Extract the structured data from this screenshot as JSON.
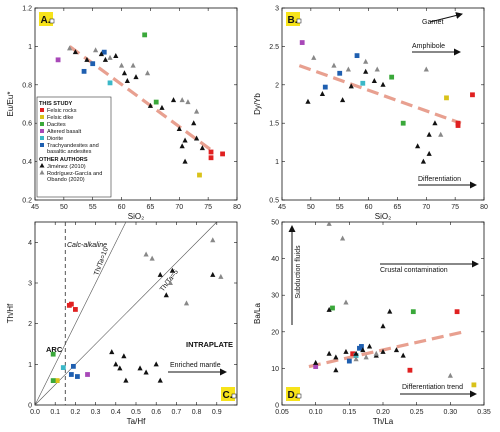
{
  "figure_colors": {
    "felsic_rocks": "#e02020",
    "felsic_dike": "#d9c21a",
    "dacites": "#3aa83a",
    "altered_basalt": "#a848b8",
    "diorite": "#3ab8c8",
    "trachyandesites": "#1f5fb0",
    "trend": "#e8a090",
    "badge_fill": "#f7e31a"
  },
  "legend": {
    "this_study": "THIS STUDY",
    "felsic_rocks": "Felsic rocks",
    "felsic_dike": "Felsic dike",
    "dacites": "Dacites",
    "altered_basalt": "Altered basalt",
    "diorite": "Diorite",
    "trachyandesites_1": "Trachyandesites and",
    "trachyandesites_2": "basaltic andesites",
    "other_authors": "OTHER AUTHORS",
    "jimenez": "Jiménez (2010)",
    "rodriguez_1": "Rodríguez-García and",
    "rodriguez_2": "Obando (2020)"
  },
  "chart_data": [
    {
      "id": "A",
      "badge": "A.",
      "type": "scatter",
      "xlabel": "SiO₂",
      "ylabel": "Eu/Eu*",
      "xlim": [
        45,
        80
      ],
      "ylim": [
        0.2,
        1.2
      ],
      "xticks": [
        45,
        50,
        55,
        60,
        65,
        70,
        75,
        80
      ],
      "yticks": [
        0.2,
        0.4,
        0.6,
        0.8,
        1.0,
        1.2
      ],
      "tick_labels_x": [
        "45",
        "50",
        "55",
        "60",
        "65",
        "70",
        "75",
        "80"
      ],
      "tick_labels_y": [
        "0.2",
        "0.4",
        "0.6",
        "0.8",
        "1",
        "1.2"
      ],
      "trend": [
        [
          51,
          1.0
        ],
        [
          76,
          0.45
        ]
      ],
      "series": [
        {
          "group": "felsic_rocks",
          "points": [
            [
              75.5,
              0.45
            ],
            [
              75.5,
              0.42
            ],
            [
              77.5,
              0.44
            ]
          ]
        },
        {
          "group": "felsic_dike",
          "points": [
            [
              73.5,
              0.33
            ]
          ]
        },
        {
          "group": "dacites",
          "points": [
            [
              64,
              1.06
            ],
            [
              66,
              0.71
            ]
          ]
        },
        {
          "group": "altered_basalt",
          "points": [
            [
              49,
              0.93
            ]
          ]
        },
        {
          "group": "diorite",
          "points": [
            [
              58,
              0.81
            ]
          ]
        },
        {
          "group": "trachyandesites",
          "points": [
            [
              53.5,
              0.87
            ],
            [
              55,
              0.91
            ],
            [
              57,
              0.97
            ]
          ]
        },
        {
          "group": "jimenez",
          "points": [
            [
              52,
              0.97
            ],
            [
              54,
              0.93
            ],
            [
              56.5,
              0.96
            ],
            [
              57.2,
              0.93
            ],
            [
              59,
              0.95
            ],
            [
              60.5,
              0.86
            ],
            [
              61,
              0.82
            ],
            [
              62.5,
              0.84
            ],
            [
              65,
              0.69
            ],
            [
              67,
              0.68
            ],
            [
              69,
              0.72
            ],
            [
              70,
              0.57
            ],
            [
              70.5,
              0.48
            ],
            [
              71,
              0.51
            ],
            [
              72.5,
              0.6
            ],
            [
              73,
              0.52
            ],
            [
              74,
              0.47
            ],
            [
              71,
              0.4
            ]
          ]
        },
        {
          "group": "rodriguez",
          "points": [
            [
              51,
              0.99
            ],
            [
              55.5,
              0.98
            ],
            [
              58,
              0.94
            ],
            [
              60,
              0.9
            ],
            [
              62,
              0.9
            ],
            [
              64.5,
              0.86
            ],
            [
              70.5,
              0.72
            ],
            [
              71.5,
              0.71
            ],
            [
              73,
              0.66
            ]
          ]
        }
      ]
    },
    {
      "id": "B",
      "badge": "B.",
      "type": "scatter",
      "xlabel": "SiO₂",
      "ylabel": "Dy/Yb",
      "xlim": [
        45,
        80
      ],
      "ylim": [
        0.5,
        3.0
      ],
      "xticks": [
        45,
        50,
        55,
        60,
        65,
        70,
        75,
        80
      ],
      "yticks": [
        0.5,
        1.0,
        1.5,
        2.0,
        2.5,
        3.0
      ],
      "tick_labels_x": [
        "45",
        "50",
        "55",
        "60",
        "65",
        "70",
        "75",
        "80"
      ],
      "tick_labels_y": [
        "0.5",
        "1",
        "1.5",
        "2",
        "2.5",
        "3"
      ],
      "trend": [
        [
          48,
          2.25
        ],
        [
          76,
          1.5
        ]
      ],
      "annotations": [
        "Garnet",
        "Amphibole",
        "Differentiation"
      ],
      "series": [
        {
          "group": "felsic_rocks",
          "points": [
            [
              75.5,
              1.47
            ],
            [
              75.5,
              1.5
            ],
            [
              78,
              1.87
            ]
          ]
        },
        {
          "group": "felsic_dike",
          "points": [
            [
              73.5,
              1.83
            ]
          ]
        },
        {
          "group": "dacites",
          "points": [
            [
              64,
              2.1
            ],
            [
              66,
              1.5
            ]
          ]
        },
        {
          "group": "altered_basalt",
          "points": [
            [
              48.5,
              2.55
            ]
          ]
        },
        {
          "group": "diorite",
          "points": [
            [
              59,
              2.02
            ]
          ]
        },
        {
          "group": "trachyandesites",
          "points": [
            [
              52.5,
              1.97
            ],
            [
              55,
              2.15
            ],
            [
              58,
              2.38
            ]
          ]
        },
        {
          "group": "jimenez",
          "points": [
            [
              49.5,
              1.78
            ],
            [
              52,
              1.88
            ],
            [
              55.5,
              1.8
            ],
            [
              57,
              1.98
            ],
            [
              59.5,
              2.17
            ],
            [
              61,
              2.05
            ],
            [
              62.5,
              2.0
            ],
            [
              68.5,
              1.2
            ],
            [
              69.5,
              1.0
            ],
            [
              70.5,
              1.35
            ],
            [
              71.5,
              1.5
            ],
            [
              70.5,
              1.1
            ]
          ]
        },
        {
          "group": "rodriguez",
          "points": [
            [
              50.5,
              2.35
            ],
            [
              54,
              2.25
            ],
            [
              56.5,
              2.2
            ],
            [
              59.5,
              2.3
            ],
            [
              61.5,
              2.2
            ],
            [
              70,
              2.2
            ],
            [
              72.5,
              1.35
            ]
          ]
        }
      ]
    },
    {
      "id": "C",
      "badge": "C.",
      "type": "scatter",
      "xlabel": "Ta/Hf",
      "ylabel": "Th/Hf",
      "xlim": [
        0,
        1.0
      ],
      "ylim": [
        0,
        4.5
      ],
      "xticks": [
        0,
        0.1,
        0.2,
        0.3,
        0.4,
        0.5,
        0.6,
        0.7,
        0.8,
        0.9
      ],
      "yticks": [
        0,
        1,
        2,
        3,
        4
      ],
      "tick_labels_x": [
        "0.0",
        "0.1",
        "0.2",
        "0.3",
        "0.4",
        "0.5",
        "0.6",
        "0.7",
        "0.8",
        "0.9"
      ],
      "tick_labels_y": [
        "0",
        "1",
        "2",
        "3",
        "4"
      ],
      "annotations": [
        "Calc-alkaline",
        "Th/Ta=10",
        "Th/Ta=5",
        "ARC",
        "INTRAPLATE",
        "Enriched mantle"
      ],
      "series": [
        {
          "group": "felsic_rocks",
          "points": [
            [
              0.17,
              2.45
            ],
            [
              0.18,
              2.48
            ],
            [
              0.2,
              2.35
            ]
          ]
        },
        {
          "group": "felsic_dike",
          "points": [
            [
              0.11,
              0.6
            ]
          ]
        },
        {
          "group": "dacites",
          "points": [
            [
              0.09,
              1.25
            ],
            [
              0.09,
              0.6
            ]
          ]
        },
        {
          "group": "altered_basalt",
          "points": [
            [
              0.26,
              0.75
            ]
          ]
        },
        {
          "group": "diorite",
          "points": [
            [
              0.14,
              0.92
            ]
          ]
        },
        {
          "group": "trachyandesites",
          "points": [
            [
              0.19,
              0.95
            ],
            [
              0.18,
              0.75
            ],
            [
              0.21,
              0.7
            ]
          ]
        },
        {
          "group": "jimenez",
          "points": [
            [
              0.38,
              1.3
            ],
            [
              0.4,
              1.0
            ],
            [
              0.42,
              0.9
            ],
            [
              0.44,
              1.2
            ],
            [
              0.45,
              0.6
            ],
            [
              0.52,
              0.9
            ],
            [
              0.55,
              0.8
            ],
            [
              0.6,
              1.0
            ],
            [
              0.62,
              0.6
            ],
            [
              0.68,
              3.3
            ],
            [
              0.62,
              3.2
            ],
            [
              0.65,
              2.7
            ],
            [
              0.88,
              3.2
            ]
          ]
        },
        {
          "group": "rodriguez",
          "points": [
            [
              0.55,
              3.7
            ],
            [
              0.58,
              3.6
            ],
            [
              0.75,
              2.5
            ],
            [
              0.88,
              4.05
            ],
            [
              0.92,
              3.15
            ],
            [
              0.67,
              3.0
            ]
          ]
        }
      ]
    },
    {
      "id": "D",
      "badge": "D.",
      "type": "scatter",
      "xlabel": "Th/La",
      "ylabel": "Ba/La",
      "xlim": [
        0.05,
        0.35
      ],
      "ylim": [
        0,
        50
      ],
      "xticks": [
        0.05,
        0.1,
        0.15,
        0.2,
        0.25,
        0.3,
        0.35
      ],
      "yticks": [
        0,
        10,
        20,
        30,
        40,
        50
      ],
      "tick_labels_x": [
        "0.05",
        "0.10",
        "0.15",
        "0.20",
        "0.25",
        "0.30",
        "0.35"
      ],
      "tick_labels_y": [
        "0",
        "10",
        "20",
        "30",
        "40",
        "50"
      ],
      "trend": [
        [
          0.09,
          10.5
        ],
        [
          0.32,
          20
        ]
      ],
      "annotations": [
        "Subduction fluids",
        "Crustal contamination",
        "Differentiation trend"
      ],
      "series": [
        {
          "group": "felsic_rocks",
          "points": [
            [
              0.24,
              9.5
            ],
            [
              0.31,
              25.5
            ],
            [
              0.155,
              14
            ]
          ]
        },
        {
          "group": "felsic_dike",
          "points": [
            [
              0.335,
              5.5
            ]
          ]
        },
        {
          "group": "dacites",
          "points": [
            [
              0.125,
              26.5
            ],
            [
              0.245,
              25.5
            ]
          ]
        },
        {
          "group": "altered_basalt",
          "points": [
            [
              0.1,
              10.5
            ]
          ]
        },
        {
          "group": "diorite",
          "points": [
            [
              0.16,
              13.5
            ]
          ]
        },
        {
          "group": "trachyandesites",
          "points": [
            [
              0.165,
              15.5
            ],
            [
              0.168,
              16
            ],
            [
              0.15,
              12
            ]
          ]
        },
        {
          "group": "jimenez",
          "points": [
            [
              0.1,
              11.5
            ],
            [
              0.12,
              14
            ],
            [
              0.13,
              13
            ],
            [
              0.145,
              14.5
            ],
            [
              0.16,
              14
            ],
            [
              0.17,
              15
            ],
            [
              0.18,
              16
            ],
            [
              0.19,
              13.5
            ],
            [
              0.2,
              14.5
            ],
            [
              0.21,
              25.5
            ],
            [
              0.22,
              15
            ],
            [
              0.23,
              13.5
            ],
            [
              0.12,
              26
            ],
            [
              0.13,
              9.5
            ],
            [
              0.2,
              21.5
            ]
          ]
        },
        {
          "group": "rodriguez",
          "points": [
            [
              0.12,
              49.5
            ],
            [
              0.14,
              45.5
            ],
            [
              0.145,
              28
            ],
            [
              0.16,
              12.5
            ],
            [
              0.175,
              13
            ],
            [
              0.3,
              8
            ],
            [
              0.19,
              14
            ]
          ]
        }
      ]
    }
  ]
}
